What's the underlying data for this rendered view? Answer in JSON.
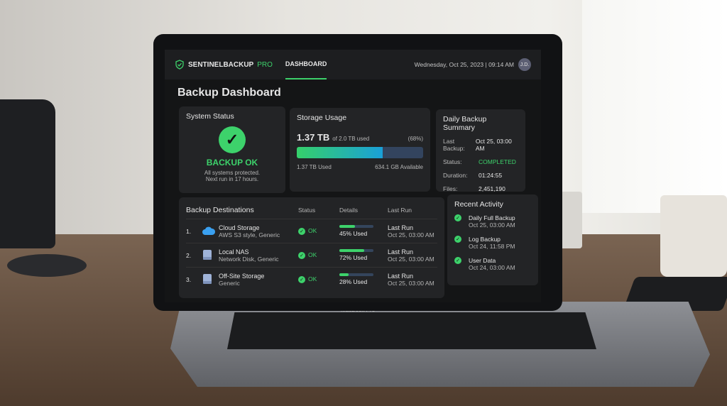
{
  "laptop": {
    "brand": "MacBook Pro"
  },
  "header": {
    "logo_main": "SENTINELBACKUP",
    "logo_sub": "PRO",
    "tab": "DASHBOARD",
    "datetime": "Wednesday, Oct 25, 2023 | 09:14 AM",
    "avatar": "J.D."
  },
  "page_title": "Backup Dashboard",
  "system_status": {
    "title": "System Status",
    "status": "BACKUP OK",
    "line1": "All systems protected.",
    "line2": "Next run in 17 hours."
  },
  "storage": {
    "title": "Storage Usage",
    "used": "1.37 TB",
    "of_total": "of 2.0 TB used",
    "percent_label": "(68%)",
    "percent": 68,
    "used_label": "1.37 TB Used",
    "available_label": "634.1 GB Available"
  },
  "summary": {
    "title": "Daily Backup Summary",
    "rows": [
      {
        "k": "Last Backup:",
        "v": "Oct 25, 03:00 AM"
      },
      {
        "k": "Status:",
        "v": "COMPLETED"
      },
      {
        "k": "Duration:",
        "v": "01:24:55"
      },
      {
        "k": "Files:",
        "v": "2,451,190"
      }
    ]
  },
  "destinations": {
    "title": "Backup Destinations",
    "columns": [
      "Status",
      "Details",
      "Last Run"
    ],
    "rows": [
      {
        "num": "1.",
        "name": "Cloud Storage",
        "sub": "AWS S3 style, Generic",
        "icon": "cloud-icon",
        "status": "OK",
        "used": 45,
        "used_label": "45% Used",
        "last_label": "Last Run",
        "last": "Oct 25, 03:00 AM"
      },
      {
        "num": "2.",
        "name": "Local NAS",
        "sub": "Network Disk, Generic",
        "icon": "disk-icon",
        "status": "OK",
        "used": 72,
        "used_label": "72% Used",
        "last_label": "Last Run",
        "last": "Oct 25, 03:00 AM"
      },
      {
        "num": "3.",
        "name": "Off-Site Storage",
        "sub": "Generic",
        "icon": "disk-icon",
        "status": "OK",
        "used": 28,
        "used_label": "28% Used",
        "last_label": "Last Run",
        "last": "Oct 25, 03:00 AM"
      }
    ]
  },
  "activity": {
    "title": "Recent Activity",
    "items": [
      {
        "t": "Daily Full Backup",
        "d": "Oct 25, 03:00 AM"
      },
      {
        "t": "Log Backup",
        "d": "Oct 24, 11:58 PM"
      },
      {
        "t": "User Data",
        "d": "Oct 24, 03:00 AM"
      }
    ]
  },
  "colors": {
    "accent": "#3dd26b",
    "background": "#141516",
    "card": "#232426"
  }
}
